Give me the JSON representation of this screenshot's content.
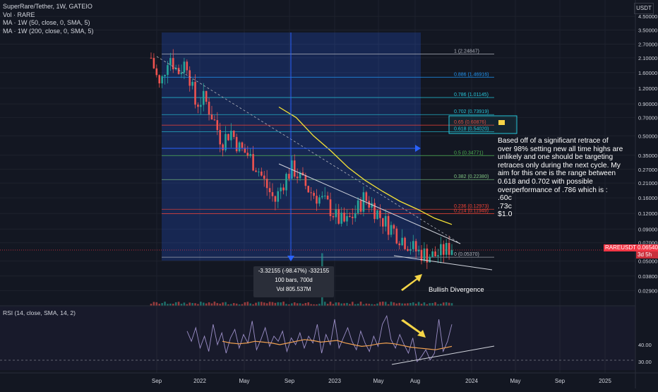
{
  "legend": {
    "title": "SuperRare/Tether, 1W, GATEIO",
    "vol": "Vol · RARE",
    "ma50": "MA · 1W (50, close, 0, SMA, 5)",
    "ma200": "MA · 1W (200, close, 0, SMA, 5)"
  },
  "currency": "USDT",
  "symbol_badge": "RAREUSDT",
  "price_badge": {
    "price": "0.06540",
    "countdown": "3d 5h"
  },
  "annotation": "Based off of a significant retrace of over 98% setting new all time highs are unlikely and one should be targeting retraces only during the next cycle. My aim for this one is the range between 0.618 and 0.702 with possible overperformance of .786 which is :",
  "targets": [
    ".60c",
    ".73c",
    "$1.0"
  ],
  "measure_tooltip": {
    "line1": "-3.32155 (-98.47%) -332155",
    "line2": "100 bars, 700d",
    "line3": "Vol 805.537M"
  },
  "bullish_label": "Bullish Divergence",
  "colors": {
    "bg": "#131722",
    "up": "#26a69a",
    "down": "#ef5350",
    "ma": "#f5e236",
    "fib_box": "#2962ff",
    "rsi": "#7e57c2",
    "rsi_ma": "#f0a050",
    "arrow": "#f5d547"
  },
  "chart_data": {
    "type": "line",
    "scale": "log",
    "x_ticks": [
      "Sep",
      "2022",
      "May",
      "Sep",
      "2023",
      "May",
      "Aug",
      "2024",
      "May",
      "Sep",
      "2025"
    ],
    "y_ticks": [
      "4.50000",
      "3.50000",
      "2.70000",
      "2.10000",
      "1.60000",
      "1.20000",
      "0.90000",
      "0.70000",
      "0.50000",
      "0.35000",
      "0.27000",
      "0.21000",
      "0.16000",
      "0.12000",
      "0.09000",
      "0.07000",
      "0.05000",
      "0.03800",
      "0.02900"
    ],
    "ylim": [
      0.026,
      5.2
    ],
    "price_path": [
      2.1,
      1.2,
      2.3,
      1.6,
      2.0,
      0.9,
      1.0,
      0.7,
      0.45,
      0.55,
      0.4,
      0.35,
      0.28,
      0.2,
      0.15,
      0.22,
      0.28,
      0.22,
      0.18,
      0.16,
      0.14,
      0.11,
      0.1,
      0.12,
      0.16,
      0.14,
      0.11,
      0.095,
      0.08,
      0.07,
      0.06,
      0.057,
      0.055,
      0.06,
      0.065
    ],
    "ma_path": [
      0.85,
      0.7,
      0.5,
      0.38,
      0.28,
      0.22,
      0.18,
      0.15,
      0.13,
      0.11,
      0.098
    ],
    "fib_levels": [
      {
        "label": "1 (2.24847)",
        "value": 2.24847,
        "color": "#b2b5be"
      },
      {
        "label": "0.886 (1.46916)",
        "value": 1.46916,
        "color": "#2196f3"
      },
      {
        "label": "0.786 (1.01145)",
        "value": 1.01145,
        "color": "#26c6da"
      },
      {
        "label": "0.702 (0.73919)",
        "value": 0.73919,
        "color": "#26c6da"
      },
      {
        "label": "0.65 (0.60876)",
        "value": 0.60876,
        "color": "#f44336"
      },
      {
        "label": "0.618 (0.54020)",
        "value": 0.5402,
        "color": "#26c6da"
      },
      {
        "label": "0.5 (0.34771)",
        "value": 0.34771,
        "color": "#4caf50"
      },
      {
        "label": "0.382 (0.22380)",
        "value": 0.2238,
        "color": "#81c784"
      },
      {
        "label": "0.236 (0.12973)",
        "value": 0.12973,
        "color": "#f44336"
      },
      {
        "label": "0.214 (0.11949)",
        "value": 0.11949,
        "color": "#f44336"
      },
      {
        "label": "0 (0.05370)",
        "value": 0.0537,
        "color": "#b2b5be"
      }
    ],
    "current_price": 0.0654,
    "rsi": {
      "label": "RSI (14, close, SMA, 14, 2)",
      "y_ticks": [
        "40.00",
        "30.00"
      ],
      "ylim": [
        25,
        60
      ],
      "values": [
        48,
        42,
        50,
        38,
        45,
        36,
        52,
        40,
        47,
        35,
        44,
        49,
        38,
        46,
        41,
        54,
        37,
        43,
        50,
        39,
        45,
        42,
        48,
        36,
        44,
        40,
        47,
        38,
        45,
        41,
        52,
        35,
        46,
        40,
        55,
        38,
        44,
        50,
        42,
        37,
        48,
        41,
        36,
        45,
        39,
        52,
        57,
        43,
        38,
        46,
        40,
        35,
        44,
        30,
        33,
        37,
        31,
        35,
        55,
        36,
        42,
        52
      ],
      "ma_values": [
        42,
        41,
        40.5,
        41,
        42,
        41.5,
        41,
        40,
        41,
        42,
        43,
        42.5,
        41.5,
        42,
        42.5,
        41,
        40,
        39,
        39.5,
        40.5,
        41,
        40.5,
        39.5,
        38.5,
        38,
        37.5,
        37,
        38,
        39
      ]
    }
  }
}
